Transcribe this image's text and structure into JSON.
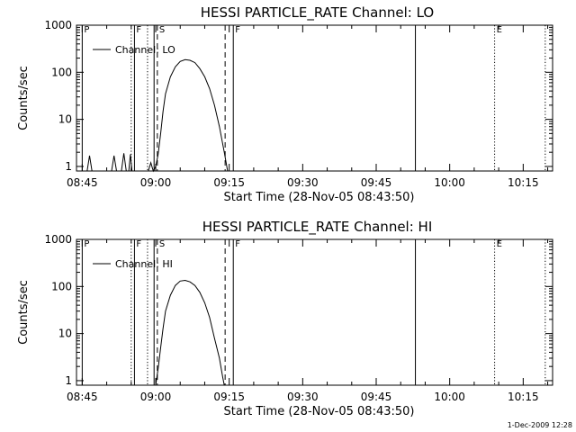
{
  "chart_data": [
    {
      "type": "line",
      "title": "HESSI PARTICLE_RATE Channel: LO",
      "xlabel": "Start Time (28-Nov-05 08:43:50)",
      "ylabel": "Counts/sec",
      "yscale": "log",
      "ylim": [
        0.8,
        1000
      ],
      "xlim": [
        "08:43:50",
        "10:21:00"
      ],
      "grid": false,
      "x_ticks": [
        "08:45",
        "09:00",
        "09:15",
        "09:30",
        "09:45",
        "10:00",
        "10:15"
      ],
      "y_ticks": [
        "1",
        "10",
        "100",
        "1000"
      ],
      "legend": {
        "location": "top-left",
        "entries": [
          "Channel: LO"
        ]
      },
      "series": [
        {
          "name": "Channel: LO",
          "color": "#000000",
          "points": [
            [
              "08:44:00",
              0.8
            ],
            [
              "08:46:00",
              0.8
            ],
            [
              "08:46:30",
              1.7
            ],
            [
              "08:47:00",
              0.8
            ],
            [
              "08:51:00",
              0.8
            ],
            [
              "08:51:30",
              1.7
            ],
            [
              "08:52:00",
              0.8
            ],
            [
              "08:53:00",
              0.8
            ],
            [
              "08:53:30",
              1.9
            ],
            [
              "08:54:00",
              0.8
            ],
            [
              "08:54:30",
              0.8
            ],
            [
              "08:54:50",
              1.8
            ],
            [
              "08:55:10",
              0.8
            ],
            [
              "08:58:30",
              0.8
            ],
            [
              "08:59:00",
              1.2
            ],
            [
              "08:59:30",
              0.8
            ],
            [
              "09:00:00",
              1.0
            ],
            [
              "09:00:30",
              1.8
            ],
            [
              "09:01:00",
              5.0
            ],
            [
              "09:01:30",
              15
            ],
            [
              "09:02:00",
              35
            ],
            [
              "09:03:00",
              80
            ],
            [
              "09:04:00",
              130
            ],
            [
              "09:05:00",
              170
            ],
            [
              "09:06:00",
              185
            ],
            [
              "09:07:00",
              180
            ],
            [
              "09:08:00",
              160
            ],
            [
              "09:09:00",
              120
            ],
            [
              "09:10:00",
              80
            ],
            [
              "09:11:00",
              45
            ],
            [
              "09:12:00",
              20
            ],
            [
              "09:13:00",
              7
            ],
            [
              "09:14:00",
              2
            ],
            [
              "09:14:40",
              0.8
            ]
          ]
        }
      ],
      "markers": [
        {
          "time": "08:45:00",
          "label": "P",
          "style": "solid"
        },
        {
          "time": "08:55:00",
          "label": "",
          "style": "dotted"
        },
        {
          "time": "08:55:40",
          "label": "F",
          "style": "solid"
        },
        {
          "time": "08:58:20",
          "label": "",
          "style": "dotted"
        },
        {
          "time": "08:59:40",
          "label": "",
          "style": "solid"
        },
        {
          "time": "09:00:20",
          "label": "S",
          "style": "dashed"
        },
        {
          "time": "09:14:10",
          "label": "",
          "style": "dashed"
        },
        {
          "time": "09:15:50",
          "label": "F",
          "style": "solid"
        },
        {
          "time": "09:53:00",
          "label": "",
          "style": "solid"
        },
        {
          "time": "10:09:10",
          "label": "E",
          "style": "dotted"
        },
        {
          "time": "10:19:30",
          "label": "",
          "style": "dotted"
        }
      ]
    },
    {
      "type": "line",
      "title": "HESSI PARTICLE_RATE Channel: HI",
      "xlabel": "Start Time (28-Nov-05 08:43:50)",
      "ylabel": "Counts/sec",
      "yscale": "log",
      "ylim": [
        0.8,
        1000
      ],
      "xlim": [
        "08:43:50",
        "10:21:00"
      ],
      "grid": false,
      "x_ticks": [
        "08:45",
        "09:00",
        "09:15",
        "09:30",
        "09:45",
        "10:00",
        "10:15"
      ],
      "y_ticks": [
        "1",
        "10",
        "100",
        "1000"
      ],
      "legend": {
        "location": "top-left",
        "entries": [
          "Channel: HI"
        ]
      },
      "series": [
        {
          "name": "Channel: HI",
          "color": "#000000",
          "points": [
            [
              "09:00:00",
              0.8
            ],
            [
              "09:00:30",
              1.8
            ],
            [
              "09:01:00",
              5
            ],
            [
              "09:01:30",
              13
            ],
            [
              "09:02:00",
              30
            ],
            [
              "09:03:00",
              65
            ],
            [
              "09:04:00",
              105
            ],
            [
              "09:05:00",
              130
            ],
            [
              "09:06:00",
              135
            ],
            [
              "09:07:00",
              125
            ],
            [
              "09:08:00",
              105
            ],
            [
              "09:09:00",
              75
            ],
            [
              "09:10:00",
              45
            ],
            [
              "09:11:00",
              22
            ],
            [
              "09:12:00",
              8
            ],
            [
              "09:13:00",
              3
            ],
            [
              "09:13:40",
              1.2
            ],
            [
              "09:14:00",
              0.8
            ]
          ]
        }
      ],
      "markers": [
        {
          "time": "08:45:00",
          "label": "P",
          "style": "solid"
        },
        {
          "time": "08:55:00",
          "label": "",
          "style": "dotted"
        },
        {
          "time": "08:55:40",
          "label": "F",
          "style": "solid"
        },
        {
          "time": "08:58:20",
          "label": "",
          "style": "dotted"
        },
        {
          "time": "08:59:40",
          "label": "",
          "style": "solid"
        },
        {
          "time": "09:00:20",
          "label": "S",
          "style": "dashed"
        },
        {
          "time": "09:14:10",
          "label": "",
          "style": "dashed"
        },
        {
          "time": "09:15:50",
          "label": "F",
          "style": "solid"
        },
        {
          "time": "09:53:00",
          "label": "",
          "style": "solid"
        },
        {
          "time": "10:09:10",
          "label": "E",
          "style": "dotted"
        },
        {
          "time": "10:19:30",
          "label": "",
          "style": "dotted"
        }
      ]
    }
  ],
  "footer": {
    "timestamp": "1-Dec-2009 12:28"
  }
}
